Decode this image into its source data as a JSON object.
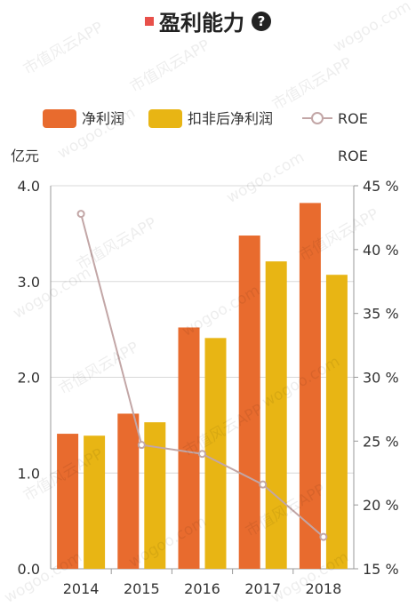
{
  "title": "盈利能力",
  "title_marker_color": "#e8504a",
  "help_icon_glyph": "?",
  "colors": {
    "net_profit": "#e86b2e",
    "deducted_net_profit": "#e8b514",
    "roe": "#c2a6a6"
  },
  "chart_data": {
    "type": "bar",
    "categories": [
      "2014",
      "2015",
      "2016",
      "2017",
      "2018"
    ],
    "left_axis": {
      "unit_label": "亿元",
      "range": [
        0,
        4
      ],
      "ticks": [
        "0.0",
        "1.0",
        "2.0",
        "3.0",
        "4.0"
      ]
    },
    "right_axis": {
      "unit_label": "ROE",
      "range": [
        15,
        45
      ],
      "ticks": [
        "15 %",
        "20 %",
        "25 %",
        "30 %",
        "35 %",
        "40 %",
        "45 %"
      ]
    },
    "series": [
      {
        "name": "净利润",
        "type": "bar",
        "axis": "left",
        "values": [
          1.41,
          1.62,
          2.52,
          3.48,
          3.82
        ]
      },
      {
        "name": "扣非后净利润",
        "type": "bar",
        "axis": "left",
        "values": [
          1.39,
          1.53,
          2.41,
          3.21,
          3.07
        ]
      },
      {
        "name": "ROE",
        "type": "line",
        "axis": "right",
        "values": [
          42.8,
          24.7,
          24.0,
          21.6,
          17.5
        ]
      }
    ],
    "legend_position": "top",
    "grid": true
  },
  "watermark_texts": [
    "市值风云APP",
    "wogoo.com"
  ]
}
